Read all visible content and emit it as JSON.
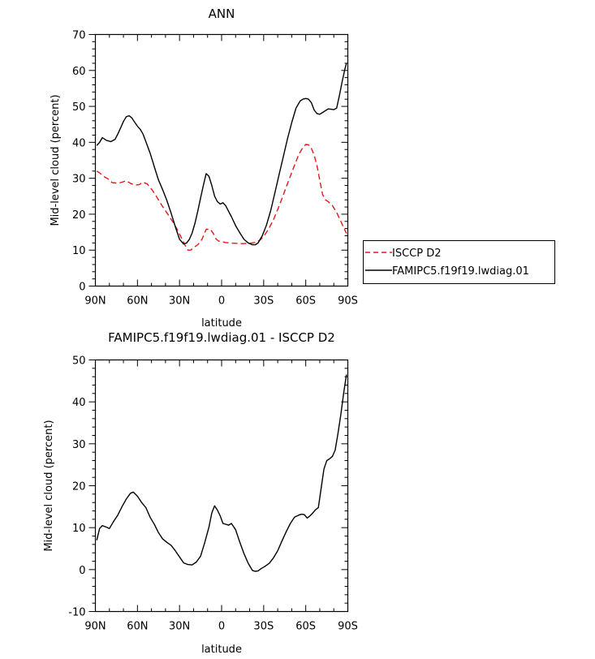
{
  "chart_data": [
    {
      "type": "line",
      "title": "ANN",
      "xlabel": "latitude",
      "ylabel": "Mid-level cloud (percent)",
      "xlim": [
        -90,
        90
      ],
      "ylim": [
        0,
        70
      ],
      "x_ticks": [
        -90,
        -60,
        -30,
        0,
        30,
        60,
        90
      ],
      "x_tick_labels": [
        "90N",
        "60N",
        "30N",
        "0",
        "30S",
        "60S",
        "90S"
      ],
      "y_ticks": [
        0,
        10,
        20,
        30,
        40,
        50,
        60,
        70
      ],
      "y_tick_labels": [
        "0",
        "10",
        "20",
        "30",
        "40",
        "50",
        "60",
        "70"
      ],
      "legend_position": "right-middle",
      "series": [
        {
          "name": "ISCCP D2",
          "style": "dashed",
          "color": "#e8161b",
          "x": [
            -89,
            -87,
            -84,
            -81,
            -78,
            -74,
            -71,
            -68,
            -65,
            -62,
            -59,
            -56,
            -53,
            -50,
            -47,
            -44,
            -41,
            -38,
            -35,
            -32,
            -29,
            -26,
            -24,
            -22,
            -20,
            -17,
            -14,
            -11,
            -8,
            -6,
            -4,
            -2,
            0,
            3,
            6,
            10,
            15,
            20,
            25,
            28,
            31,
            34,
            37,
            40,
            43,
            46,
            49,
            52,
            55,
            58,
            60,
            62,
            64,
            66,
            68,
            70,
            72,
            74,
            76,
            79,
            82,
            85,
            88,
            89
          ],
          "values": [
            32,
            31.5,
            30.5,
            29.8,
            28.8,
            28.6,
            28.9,
            29.3,
            28.6,
            28.1,
            28.2,
            28.9,
            28.4,
            27.0,
            25.3,
            23.3,
            21.5,
            19.8,
            18.0,
            16.0,
            13.7,
            11.3,
            10.0,
            10.0,
            10.7,
            11.5,
            13.0,
            15.8,
            15.8,
            14.7,
            13.1,
            12.5,
            12.4,
            12.1,
            12.0,
            11.9,
            11.8,
            11.9,
            12.2,
            13.0,
            14.4,
            16.2,
            18.5,
            21.3,
            24.3,
            27.5,
            30.6,
            33.6,
            36.6,
            38.6,
            39.4,
            39.3,
            38.3,
            36.5,
            33.5,
            29.5,
            25.5,
            24.0,
            23.5,
            22.4,
            20.5,
            18.0,
            15.5,
            14.7
          ]
        },
        {
          "name": "FAMIPC5.f19f19.lwdiag.01",
          "style": "solid",
          "color": "#000000",
          "x": [
            -89,
            -87,
            -85,
            -82,
            -79,
            -76,
            -74,
            -72,
            -70,
            -68,
            -66,
            -64,
            -62,
            -60,
            -58,
            -56,
            -54,
            -51,
            -48,
            -45,
            -42,
            -39,
            -36,
            -33,
            -30,
            -27,
            -25,
            -23,
            -21,
            -19,
            -17,
            -15,
            -13,
            -11,
            -9,
            -7,
            -5,
            -3,
            -1,
            1,
            3,
            5,
            7,
            10,
            13,
            16,
            19,
            22,
            24,
            26,
            29,
            32,
            35,
            38,
            41,
            44,
            47,
            50,
            53,
            56,
            58,
            60,
            62,
            64,
            66,
            68,
            70,
            72,
            74,
            76,
            78,
            80,
            82,
            84,
            86,
            88,
            89
          ],
          "values": [
            39.1,
            40.0,
            41.3,
            40.5,
            40.2,
            40.8,
            42.3,
            44.0,
            45.8,
            47.1,
            47.4,
            46.8,
            45.6,
            44.5,
            43.6,
            42.3,
            40.2,
            37.0,
            33.2,
            29.5,
            26.8,
            23.8,
            20.3,
            16.5,
            13.0,
            11.7,
            12.0,
            13.0,
            14.8,
            17.5,
            20.8,
            24.5,
            28.0,
            31.3,
            30.5,
            28.0,
            25.0,
            23.5,
            22.8,
            23.2,
            22.3,
            20.8,
            19.3,
            16.8,
            14.8,
            13.0,
            12.0,
            11.5,
            11.5,
            12.0,
            14.0,
            17.0,
            21.0,
            26.0,
            31.0,
            36.0,
            41.0,
            45.5,
            49.5,
            51.5,
            52.0,
            52.2,
            52.0,
            51.0,
            49.0,
            48.0,
            47.8,
            48.3,
            48.8,
            49.3,
            49.2,
            49.1,
            49.5,
            53.0,
            57.0,
            60.5,
            62.0
          ]
        }
      ]
    },
    {
      "type": "line",
      "title": "FAMIPC5.f19f19.lwdiag.01 - ISCCP D2",
      "xlabel": "latitude",
      "ylabel": "Mid-level cloud (percent)",
      "xlim": [
        -90,
        90
      ],
      "ylim": [
        -10,
        50
      ],
      "x_ticks": [
        -90,
        -60,
        -30,
        0,
        30,
        60,
        90
      ],
      "x_tick_labels": [
        "90N",
        "60N",
        "30N",
        "0",
        "30S",
        "60S",
        "90S"
      ],
      "y_ticks": [
        -10,
        0,
        10,
        20,
        30,
        40,
        50
      ],
      "y_tick_labels": [
        "-10",
        "0",
        "10",
        "20",
        "30",
        "40",
        "50"
      ],
      "series": [
        {
          "style": "solid",
          "color": "#000000",
          "x": [
            -89,
            -87,
            -85,
            -82,
            -80,
            -77,
            -74,
            -71,
            -68,
            -65,
            -63,
            -60,
            -57,
            -54,
            -51,
            -48,
            -45,
            -42,
            -39,
            -36,
            -33,
            -30,
            -27,
            -24,
            -21,
            -18,
            -15,
            -12,
            -9,
            -7,
            -5,
            -3,
            -1,
            1,
            3,
            5,
            7,
            10,
            13,
            16,
            19,
            22,
            24,
            26,
            28,
            31,
            34,
            37,
            40,
            43,
            46,
            49,
            52,
            55,
            57,
            59,
            61,
            63,
            65,
            67,
            69,
            71,
            73,
            75,
            77,
            79,
            81,
            83,
            85,
            87,
            89
          ],
          "values": [
            7.0,
            9.8,
            10.5,
            10.1,
            9.8,
            11.5,
            13.0,
            15.0,
            16.8,
            18.2,
            18.5,
            17.5,
            16.0,
            14.8,
            12.5,
            10.8,
            8.8,
            7.3,
            6.5,
            5.8,
            4.5,
            3.0,
            1.6,
            1.2,
            1.1,
            1.8,
            3.2,
            6.5,
            10.2,
            13.5,
            15.2,
            14.2,
            12.8,
            11.0,
            10.8,
            10.6,
            11.0,
            9.5,
            6.5,
            3.8,
            1.5,
            -0.2,
            -0.4,
            -0.3,
            0.2,
            0.8,
            1.5,
            2.8,
            4.5,
            6.8,
            9.0,
            11.0,
            12.5,
            13.0,
            13.2,
            13.1,
            12.3,
            12.8,
            13.5,
            14.3,
            14.8,
            19.5,
            24.0,
            26.0,
            26.4,
            27.0,
            28.5,
            32.5,
            37.0,
            42.0,
            46.5
          ]
        }
      ]
    }
  ],
  "legend": {
    "entries": [
      "ISCCP D2",
      "FAMIPC5.f19f19.lwdiag.01"
    ]
  }
}
